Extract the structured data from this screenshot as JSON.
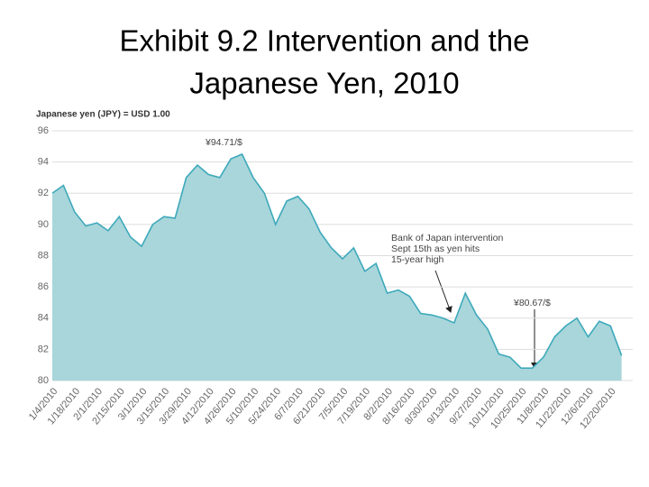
{
  "chart_data": {
    "type": "area",
    "title_lines": [
      "Exhibit 9.2  Intervention and the",
      "Japanese Yen, 2010"
    ],
    "y_axis_label": "Japanese yen (JPY) = USD 1.00",
    "annotations": [
      {
        "lines": [
          "¥94.71/$"
        ]
      },
      {
        "lines": [
          "Bank of Japan intervention",
          "Sept 15th as yen hits",
          "15-year high"
        ]
      },
      {
        "lines": [
          "¥80.67/$"
        ]
      }
    ],
    "categories": [
      "1/4/2010",
      null,
      "1/18/2010",
      null,
      "2/1/2010",
      null,
      "2/15/2010",
      null,
      "3/1/2010",
      null,
      "3/15/2010",
      null,
      "3/29/2010",
      null,
      "4/12/2010",
      null,
      "4/26/2010",
      null,
      "5/10/2010",
      null,
      "5/24/2010",
      null,
      "6/7/2010",
      null,
      "6/21/2010",
      null,
      "7/5/2010",
      null,
      "7/19/2010",
      null,
      "8/2/2010",
      null,
      "8/16/2010",
      null,
      "8/30/2010",
      null,
      "9/13/2010",
      null,
      "9/27/2010",
      null,
      "10/11/2010",
      null,
      "10/25/2010",
      null,
      "11/8/2010",
      null,
      "11/22/2010",
      null,
      "12/6/2010",
      null,
      "12/20/2010",
      null
    ],
    "values": [
      92,
      92.5,
      90.8,
      89.9,
      90.1,
      89.6,
      90.5,
      89.2,
      88.6,
      90.0,
      90.5,
      90.4,
      93.0,
      93.8,
      93.2,
      93.0,
      94.2,
      94.5,
      93.0,
      92.0,
      90.0,
      91.5,
      91.8,
      91.0,
      89.5,
      88.5,
      87.8,
      88.5,
      87.0,
      87.5,
      85.6,
      85.8,
      85.4,
      84.3,
      84.2,
      84.0,
      83.7,
      85.6,
      84.2,
      83.3,
      81.7,
      81.5,
      80.8,
      80.8,
      81.5,
      82.8,
      83.5,
      84.0,
      82.8,
      83.8,
      83.5,
      81.6
    ],
    "color": "#3ea9bb",
    "fill_color": "#a9d6da",
    "ylim": [
      80,
      96
    ],
    "yticks": [
      80,
      82,
      84,
      86,
      88,
      90,
      92,
      94,
      96
    ],
    "grid": true
  }
}
